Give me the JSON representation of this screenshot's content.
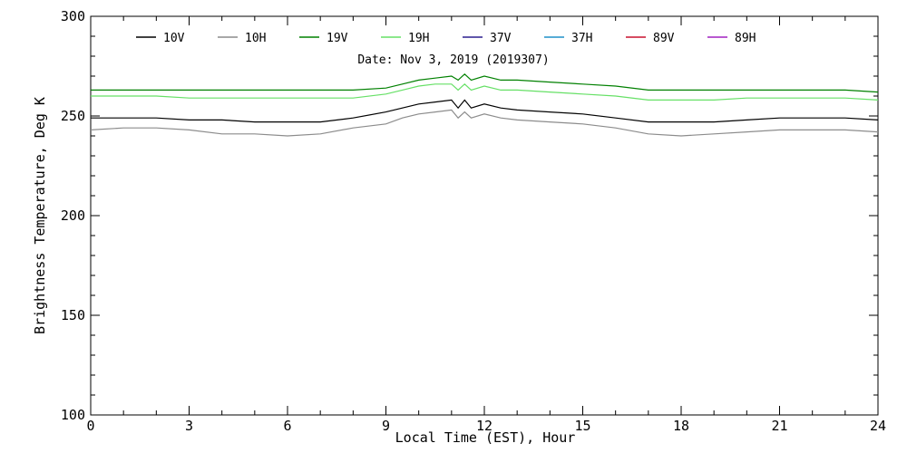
{
  "chart_data": {
    "type": "line",
    "title": "Date: Nov  3, 2019 (2019307)",
    "xlabel": "Local Time (EST), Hour",
    "ylabel": "Brightness Temperature, Deg  K",
    "xlim": [
      0,
      24
    ],
    "ylim": [
      100,
      300
    ],
    "xticks": [
      0,
      3,
      6,
      9,
      12,
      15,
      18,
      21,
      24
    ],
    "yticks": [
      100,
      150,
      200,
      250,
      300
    ],
    "grid": false,
    "legend_position": "top",
    "series": [
      {
        "name": "10V",
        "color": "#000000",
        "x": [
          0,
          1,
          2,
          3,
          4,
          5,
          6,
          7,
          8,
          9,
          9.5,
          10,
          10.5,
          11,
          11.2,
          11.4,
          11.6,
          12,
          12.5,
          13,
          14,
          15,
          16,
          17,
          18,
          19,
          20,
          21,
          22,
          23,
          24
        ],
        "y": [
          249,
          249,
          249,
          248,
          248,
          247,
          247,
          247,
          249,
          252,
          254,
          256,
          257,
          258,
          254,
          258,
          254,
          256,
          254,
          253,
          252,
          251,
          249,
          247,
          247,
          247,
          248,
          249,
          249,
          249,
          248
        ]
      },
      {
        "name": "10H",
        "color": "#8c8c8c",
        "x": [
          0,
          1,
          2,
          3,
          4,
          5,
          6,
          7,
          8,
          9,
          9.5,
          10,
          10.5,
          11,
          11.2,
          11.4,
          11.6,
          12,
          12.5,
          13,
          14,
          15,
          16,
          17,
          18,
          19,
          20,
          21,
          22,
          23,
          24
        ],
        "y": [
          243,
          244,
          244,
          243,
          241,
          241,
          240,
          241,
          244,
          246,
          249,
          251,
          252,
          253,
          249,
          252,
          249,
          251,
          249,
          248,
          247,
          246,
          244,
          241,
          240,
          241,
          242,
          243,
          243,
          243,
          242
        ]
      },
      {
        "name": "19V",
        "color": "#008000",
        "x": [
          0,
          1,
          2,
          3,
          4,
          5,
          6,
          7,
          8,
          9,
          9.5,
          10,
          10.5,
          11,
          11.2,
          11.4,
          11.6,
          12,
          12.5,
          13,
          14,
          15,
          16,
          17,
          18,
          19,
          20,
          21,
          22,
          23,
          24
        ],
        "y": [
          263,
          263,
          263,
          263,
          263,
          263,
          263,
          263,
          263,
          264,
          266,
          268,
          269,
          270,
          268,
          271,
          268,
          270,
          268,
          268,
          267,
          266,
          265,
          263,
          263,
          263,
          263,
          263,
          263,
          263,
          262
        ]
      },
      {
        "name": "19H",
        "color": "#66e066",
        "x": [
          0,
          1,
          2,
          3,
          4,
          5,
          6,
          7,
          8,
          9,
          9.5,
          10,
          10.5,
          11,
          11.2,
          11.4,
          11.6,
          12,
          12.5,
          13,
          14,
          15,
          16,
          17,
          18,
          19,
          20,
          21,
          22,
          23,
          24
        ],
        "y": [
          260,
          260,
          260,
          259,
          259,
          259,
          259,
          259,
          259,
          261,
          263,
          265,
          266,
          266,
          263,
          266,
          263,
          265,
          263,
          263,
          262,
          261,
          260,
          258,
          258,
          258,
          259,
          259,
          259,
          259,
          258
        ]
      },
      {
        "name": "37V",
        "color": "#2b1f8f",
        "x": [],
        "y": []
      },
      {
        "name": "37H",
        "color": "#1e90c8",
        "x": [],
        "y": []
      },
      {
        "name": "89V",
        "color": "#c8102e",
        "x": [],
        "y": []
      },
      {
        "name": "89H",
        "color": "#a020c0",
        "x": [],
        "y": []
      }
    ]
  }
}
